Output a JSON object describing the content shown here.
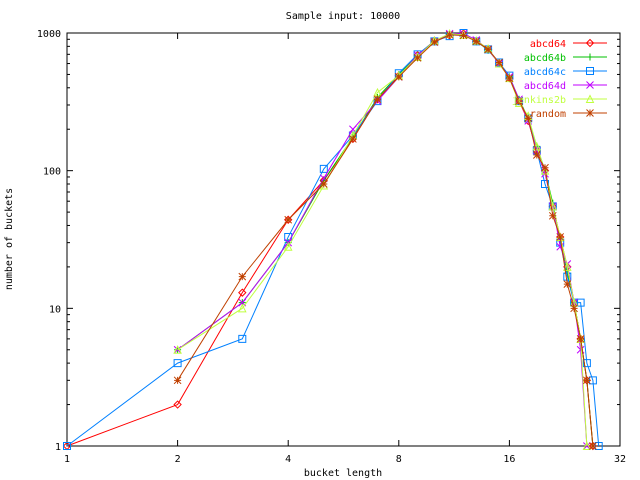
{
  "chart_data": {
    "type": "line",
    "title": "Sample input: 10000",
    "xlabel": "bucket length",
    "ylabel": "number of buckets",
    "xscale": "log2",
    "yscale": "log10",
    "xlim": [
      1,
      32
    ],
    "ylim": [
      1,
      1000
    ],
    "xticks": [
      1,
      2,
      4,
      8,
      16,
      32
    ],
    "yticks": [
      1,
      10,
      100,
      1000
    ],
    "legend_position": "top-right",
    "x": [
      1,
      2,
      3,
      4,
      5,
      6,
      7,
      8,
      9,
      10,
      11,
      12,
      13,
      14,
      15,
      16,
      17,
      18,
      19,
      20,
      21,
      22,
      23,
      24,
      25,
      26,
      27,
      28
    ],
    "series": [
      {
        "name": "abcd64",
        "color": "#ff0000",
        "marker": "diamond",
        "values": [
          1,
          2,
          13,
          44,
          85,
          170,
          330,
          490,
          690,
          880,
          960,
          990,
          870,
          760,
          600,
          470,
          320,
          230,
          140,
          100,
          55,
          33,
          20,
          11,
          6,
          3,
          1,
          null
        ]
      },
      {
        "name": "abcd64b",
        "color": "#00c000",
        "marker": "plus",
        "values": [
          null,
          5,
          11,
          30,
          85,
          175,
          340,
          500,
          680,
          870,
          980,
          970,
          880,
          750,
          610,
          480,
          330,
          240,
          150,
          100,
          58,
          31,
          18,
          11,
          6,
          3,
          1,
          null
        ]
      },
      {
        "name": "abcd64c",
        "color": "#0080ff",
        "marker": "square",
        "values": [
          1,
          4,
          6,
          33,
          103,
          180,
          320,
          510,
          700,
          870,
          950,
          1000,
          870,
          760,
          610,
          490,
          320,
          240,
          140,
          80,
          55,
          30,
          17,
          11,
          11,
          4,
          3,
          1
        ]
      },
      {
        "name": "abcd64d",
        "color": "#c000ff",
        "marker": "cross",
        "values": [
          null,
          5,
          11,
          30,
          88,
          200,
          320,
          480,
          690,
          860,
          990,
          990,
          890,
          760,
          600,
          480,
          330,
          230,
          140,
          95,
          55,
          28,
          21,
          11,
          5,
          1,
          null,
          null
        ]
      },
      {
        "name": "jenkins2b",
        "color": "#c0ff40",
        "marker": "triangle",
        "values": [
          null,
          5,
          10,
          28,
          78,
          180,
          370,
          490,
          670,
          880,
          990,
          970,
          880,
          770,
          600,
          470,
          310,
          250,
          150,
          100,
          55,
          33,
          20,
          11,
          6,
          1,
          null,
          null
        ]
      },
      {
        "name": "random",
        "color": "#c04000",
        "marker": "star",
        "values": [
          null,
          3,
          17,
          44,
          80,
          170,
          330,
          480,
          660,
          860,
          970,
          960,
          870,
          760,
          610,
          470,
          320,
          240,
          130,
          105,
          47,
          33,
          15,
          10,
          6,
          3,
          1,
          null
        ]
      }
    ]
  }
}
